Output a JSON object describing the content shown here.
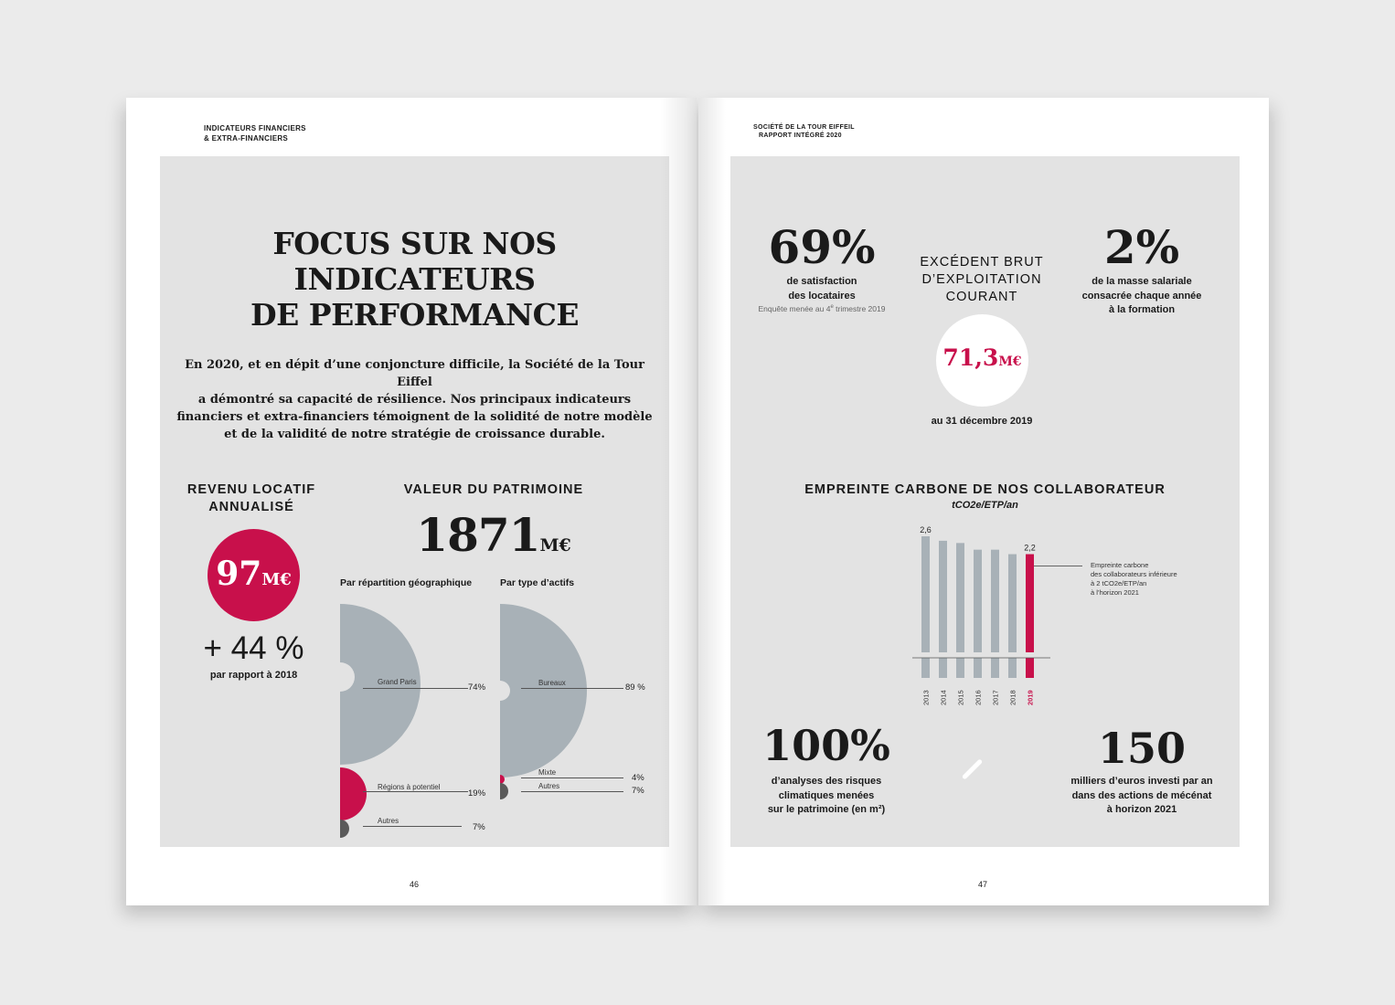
{
  "colors": {
    "crimson": "#c8104b",
    "grey_blue": "#a8b1b7",
    "dark_grey": "#5a5a5a",
    "panel": "#e3e3e3"
  },
  "left_page": {
    "header_line1": "INDICATEURS FINANCIERS",
    "header_line2": "& EXTRA-FINANCIERS",
    "title_line1": "FOCUS SUR NOS",
    "title_line2": "INDICATEURS",
    "title_line3": "DE PERFORMANCE",
    "intro_line1": "En 2020, et en dépit d’une conjoncture difficile, la Société de la Tour Eiffel",
    "intro_line2": "a démontré sa capacité de résilience. Nos principaux indicateurs",
    "intro_line3": "financiers et extra-financiers témoignent de la solidité de notre modèle",
    "intro_line4": "et de la validité de notre stratégie de croissance durable.",
    "revenu": {
      "heading_line1": "REVENU LOCATIF",
      "heading_line2": "ANNUALISÉ",
      "value": "97",
      "unit": "M€",
      "growth": "+ 44 %",
      "growth_caption": "par rapport à 2018"
    },
    "patrimoine": {
      "heading": "VALEUR DU PATRIMOINE",
      "value": "1871",
      "unit": "M€",
      "geo_title": "Par répartition géographique",
      "asset_title": "Par type d’actifs",
      "geo": [
        {
          "label": "Grand Paris",
          "value": 74,
          "display": "74%"
        },
        {
          "label": "Régions à potentiel",
          "value": 19,
          "display": "19%"
        },
        {
          "label": "Autres",
          "value": 7,
          "display": "7%"
        }
      ],
      "assets": [
        {
          "label": "Bureaux",
          "value": 89,
          "display": "89 %"
        },
        {
          "label": "Mixte",
          "value": 4,
          "display": "4%"
        },
        {
          "label": "Autres",
          "value": 7,
          "display": "7%"
        }
      ]
    },
    "page_number": "46"
  },
  "right_page": {
    "header_line1": "SOCIÉTÉ DE LA TOUR EIFFEIL",
    "header_line2": "RAPPORT INTÉGRÉ 2020",
    "satisfaction": {
      "value": "69%",
      "caption_line1": "de satisfaction",
      "caption_line2": "des locataires",
      "note_pre": "Enquête menée au 4",
      "note_sup": "e",
      "note_post": " trimestre 2019"
    },
    "ebe": {
      "heading_line1": "EXCÉDENT BRUT",
      "heading_line2": "D’EXPLOITATION",
      "heading_line3": "COURANT",
      "value": "71,3",
      "unit": "M€",
      "caption": "au 31 décembre 2019"
    },
    "formation": {
      "value": "2%",
      "caption_line1": "de la masse salariale",
      "caption_line2": "consacrée chaque année",
      "caption_line3": "à la formation"
    },
    "carbon": {
      "heading": "EMPREINTE CARBONE DE NOS COLLABORATEUR",
      "unit": "tCO2e/ETP/an",
      "annotation_line1": "Empreinte carbone",
      "annotation_line2": "des collaborateurs inférieure",
      "annotation_line3": "à 2 tCO2e/ETP/an",
      "annotation_line4": "à l’horizon 2021"
    },
    "risques": {
      "value": "100%",
      "caption_line1": "d’analyses des risques",
      "caption_line2": "climatiques menées",
      "caption_line3": "sur le patrimoine (en m²)"
    },
    "mecenat": {
      "value": "150",
      "caption_line1": "milliers d’euros investi par an",
      "caption_line2": "dans des actions de mécénat",
      "caption_line3": "à horizon 2021"
    },
    "page_number": "47"
  },
  "chart_data": {
    "type": "bar",
    "title": "EMPREINTE CARBONE DE NOS COLLABORATEUR",
    "ylabel": "tCO2e/ETP/an",
    "categories": [
      "2013",
      "2014",
      "2015",
      "2016",
      "2017",
      "2018",
      "2019"
    ],
    "values": [
      2.6,
      2.5,
      2.45,
      2.3,
      2.3,
      2.2,
      2.2
    ],
    "data_labels": {
      "2013": "2,6",
      "2019": "2,2"
    },
    "highlight": "2019",
    "ylim": [
      0,
      2.6
    ]
  }
}
